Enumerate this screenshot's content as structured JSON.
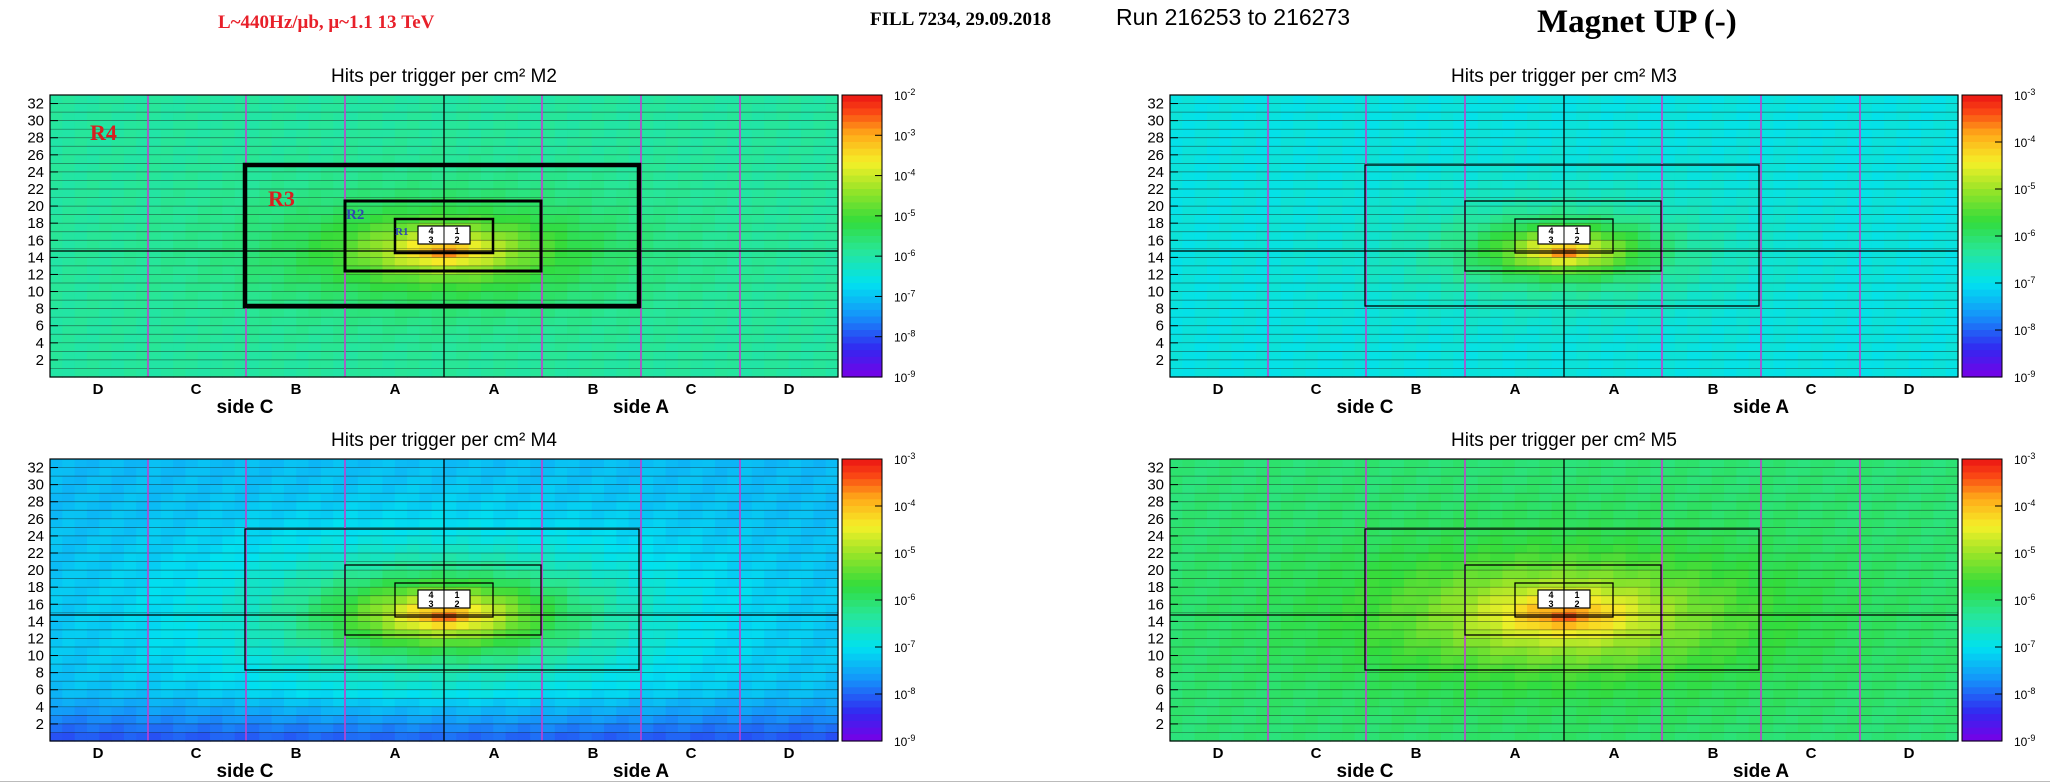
{
  "header": {
    "luminosity": "L~440Hz/μb,   μ~1.1   13 TeV",
    "fill": "FILL 7234, 29.09.2018",
    "run": "Run 216253 to 216273",
    "magnet": "Magnet UP (-)"
  },
  "colors": {
    "grid_purple": "#c040d0",
    "region_red": "#d82020",
    "region_blue": "#3048b0"
  },
  "chart_data": [
    {
      "type": "heatmap",
      "station": "M2",
      "title": "Hits per trigger per cm² M2",
      "y_ticks": [
        "2",
        "4",
        "6",
        "8",
        "10",
        "12",
        "14",
        "16",
        "18",
        "20",
        "22",
        "24",
        "26",
        "28",
        "30",
        "32"
      ],
      "ylim": [
        0,
        33
      ],
      "x_categories": [
        "D",
        "C",
        "B",
        "A",
        "A",
        "B",
        "C",
        "D"
      ],
      "side_labels": [
        "side C",
        "side A"
      ],
      "colorbar": {
        "scale": "log",
        "exp_min": -9,
        "exp_max": -2,
        "labels": [
          "-9",
          "-8",
          "-7",
          "-6",
          "-5",
          "-4",
          "-3",
          "-2"
        ]
      },
      "field": {
        "peak_exp": -2.5,
        "background_exp": -5.95,
        "sigma_x": 1.05,
        "sigma_y": 3.5,
        "edge_fall": 0.0
      },
      "region_labels": [
        "R1",
        "R2",
        "R3",
        "R4"
      ],
      "quadrant_labels": [
        "4",
        "1",
        "3",
        "2"
      ],
      "thick_regions": true
    },
    {
      "type": "heatmap",
      "station": "M3",
      "title": "Hits per trigger per cm² M3",
      "y_ticks": [
        "2",
        "4",
        "6",
        "8",
        "10",
        "12",
        "14",
        "16",
        "18",
        "20",
        "22",
        "24",
        "26",
        "28",
        "30",
        "32"
      ],
      "ylim": [
        0,
        33
      ],
      "x_categories": [
        "D",
        "C",
        "B",
        "A",
        "A",
        "B",
        "C",
        "D"
      ],
      "side_labels": [
        "side C",
        "side A"
      ],
      "colorbar": {
        "scale": "log",
        "exp_min": -9,
        "exp_max": -3,
        "labels": [
          "-9",
          "-8",
          "-7",
          "-6",
          "-5",
          "-4",
          "-3"
        ]
      },
      "field": {
        "peak_exp": -3.3,
        "background_exp": -6.9,
        "sigma_x": 0.85,
        "sigma_y": 3.0,
        "edge_fall": 0.0
      },
      "region_labels": [],
      "quadrant_labels": [
        "4",
        "1",
        "3",
        "2"
      ],
      "thick_regions": false
    },
    {
      "type": "heatmap",
      "station": "M4",
      "title": "Hits per trigger per cm² M4",
      "y_ticks": [
        "2",
        "4",
        "6",
        "8",
        "10",
        "12",
        "14",
        "16",
        "18",
        "20",
        "22",
        "24",
        "26",
        "28",
        "30",
        "32"
      ],
      "ylim": [
        0,
        33
      ],
      "x_categories": [
        "D",
        "C",
        "B",
        "A",
        "A",
        "B",
        "C",
        "D"
      ],
      "side_labels": [
        "side C",
        "side A"
      ],
      "colorbar": {
        "scale": "log",
        "exp_min": -9,
        "exp_max": -3,
        "labels": [
          "-9",
          "-8",
          "-7",
          "-6",
          "-5",
          "-4",
          "-3"
        ]
      },
      "field": {
        "peak_exp": -3.3,
        "background_exp": -7.4,
        "sigma_x": 1.45,
        "sigma_y": 5.0,
        "edge_fall": 0.8
      },
      "region_labels": [],
      "quadrant_labels": [
        "4",
        "1",
        "3",
        "2"
      ],
      "thick_regions": false
    },
    {
      "type": "heatmap",
      "station": "M5",
      "title": "Hits per trigger per cm² M5",
      "y_ticks": [
        "2",
        "4",
        "6",
        "8",
        "10",
        "12",
        "14",
        "16",
        "18",
        "20",
        "22",
        "24",
        "26",
        "28",
        "30",
        "32"
      ],
      "ylim": [
        0,
        33
      ],
      "x_categories": [
        "D",
        "C",
        "B",
        "A",
        "A",
        "B",
        "C",
        "D"
      ],
      "side_labels": [
        "side C",
        "side A"
      ],
      "colorbar": {
        "scale": "log",
        "exp_min": -9,
        "exp_max": -3,
        "labels": [
          "-9",
          "-8",
          "-7",
          "-6",
          "-5",
          "-4",
          "-3"
        ]
      },
      "field": {
        "peak_exp": -3.3,
        "background_exp": -6.1,
        "sigma_x": 1.4,
        "sigma_y": 4.8,
        "edge_fall": 0.0
      },
      "region_labels": [],
      "quadrant_labels": [
        "4",
        "1",
        "3",
        "2"
      ],
      "thick_regions": false
    }
  ]
}
